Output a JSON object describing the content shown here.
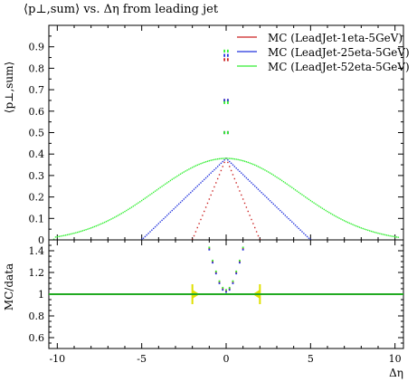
{
  "title": "⟨p⊥,sum⟩ vs. Δη from leading jet",
  "chart_data": [
    {
      "type": "scatter",
      "title": "⟨p⊥,sum⟩ vs. Δη from leading jet",
      "xlabel": "",
      "ylabel": "⟨p⊥,sum⟩",
      "xlim": [
        -10.5,
        10.5
      ],
      "ylim": [
        0,
        1.0
      ],
      "x_ticks": [
        "-10",
        "-5",
        "0",
        "5",
        "10"
      ],
      "y_ticks": [
        "0",
        "0.1",
        "0.2",
        "0.3",
        "0.4",
        "0.5",
        "0.6",
        "0.7",
        "0.8",
        "0.9"
      ],
      "legend": "top-right",
      "series": [
        {
          "name": "MC (LeadJet-1eta-5GeV)",
          "color": "#cc2222",
          "shape": "triangle",
          "halfwidth": 2.0,
          "peak": 0.38,
          "spikes": [
            [
              0.1,
              0.84
            ],
            [
              0.1,
              0.65
            ],
            [
              0.1,
              0.5
            ]
          ]
        },
        {
          "name": "MC (LeadJet-25eta-5GeV)",
          "color": "#2233dd",
          "shape": "triangle",
          "halfwidth": 5.0,
          "peak": 0.38,
          "spikes": [
            [
              0.1,
              0.86
            ],
            [
              0.1,
              0.65
            ],
            [
              0.1,
              0.5
            ]
          ]
        },
        {
          "name": "MC (LeadJet-52eta-5GeV)",
          "color": "#33ee33",
          "shape": "bell",
          "halfwidth": 10.2,
          "peak": 0.38,
          "spikes": [
            [
              0.1,
              0.88
            ],
            [
              0.1,
              0.64
            ],
            [
              0.1,
              0.5
            ]
          ]
        }
      ]
    },
    {
      "type": "line",
      "title": "",
      "xlabel": "Δη",
      "ylabel": "MC/data",
      "xlim": [
        -10.5,
        10.5
      ],
      "ylim": [
        0.5,
        1.5
      ],
      "x_ticks": [
        "-10",
        "-5",
        "0",
        "5",
        "10"
      ],
      "y_ticks": [
        "0.6",
        "0.8",
        "1",
        "1.2",
        "1.4"
      ],
      "reference_line": 1.0,
      "reference_color": "#22aa22",
      "data_band": {
        "x": [
          -2.0,
          2.0
        ],
        "y": 1.0,
        "color": "#e0e000"
      },
      "series": [
        {
          "name": "MC (LeadJet-1eta-5GeV)",
          "color": "#cc2222",
          "x": [
            -1.0,
            -0.8,
            -0.6,
            -0.4,
            -0.2,
            0,
            0.2,
            0.4,
            0.6,
            0.8,
            1.0
          ],
          "y": [
            1.42,
            1.3,
            1.2,
            1.11,
            1.05,
            1.03,
            1.05,
            1.11,
            1.2,
            1.3,
            1.42
          ]
        },
        {
          "name": "MC (LeadJet-25eta-5GeV)",
          "color": "#2233dd",
          "x": [
            -1.0,
            -0.8,
            -0.6,
            -0.4,
            -0.2,
            0,
            0.2,
            0.4,
            0.6,
            0.8,
            1.0
          ],
          "y": [
            1.41,
            1.29,
            1.19,
            1.1,
            1.04,
            1.02,
            1.04,
            1.1,
            1.19,
            1.29,
            1.41
          ]
        },
        {
          "name": "MC (LeadJet-52eta-5GeV)",
          "color": "#33ee33",
          "x": [
            -1.0,
            -0.8,
            -0.6,
            -0.4,
            -0.2,
            0,
            0.2,
            0.4,
            0.6,
            0.8,
            1.0
          ],
          "y": [
            1.43,
            1.31,
            1.21,
            1.12,
            1.06,
            1.04,
            1.06,
            1.12,
            1.21,
            1.31,
            1.43
          ]
        }
      ]
    }
  ]
}
